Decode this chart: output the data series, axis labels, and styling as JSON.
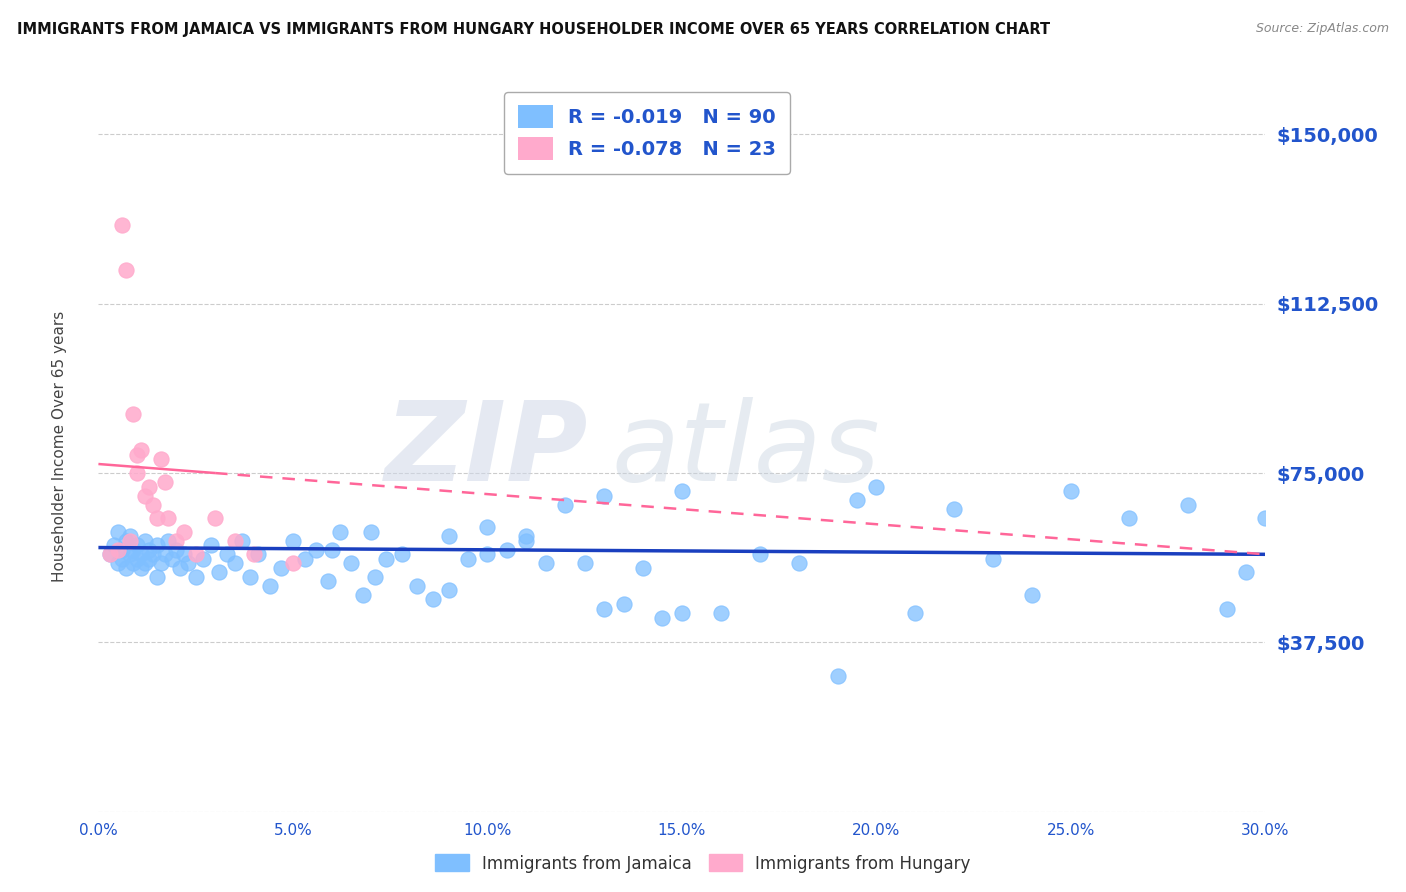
{
  "title": "IMMIGRANTS FROM JAMAICA VS IMMIGRANTS FROM HUNGARY HOUSEHOLDER INCOME OVER 65 YEARS CORRELATION CHART",
  "source": "Source: ZipAtlas.com",
  "ylabel": "Householder Income Over 65 years",
  "xmin": 0.0,
  "xmax": 30.0,
  "ymin": 0,
  "ymax": 160000,
  "yticks": [
    0,
    37500,
    75000,
    112500,
    150000
  ],
  "ytick_labels": [
    "",
    "$37,500",
    "$75,000",
    "$112,500",
    "$150,000"
  ],
  "xticks": [
    0.0,
    5.0,
    10.0,
    15.0,
    20.0,
    25.0,
    30.0
  ],
  "legend_jamaica_r": "R = -0.019",
  "legend_jamaica_n": "N = 90",
  "legend_hungary_r": "R = -0.078",
  "legend_hungary_n": "N = 23",
  "legend_label_jamaica": "Immigrants from Jamaica",
  "legend_label_hungary": "Immigrants from Hungary",
  "color_jamaica": "#7fbfff",
  "color_hungary": "#ffaacc",
  "color_trendline_jamaica": "#1a3fbf",
  "color_trendline_hungary": "#ff6699",
  "color_title": "#111111",
  "color_axis_labels": "#2255cc",
  "color_legend_text": "#2255cc",
  "background_color": "#ffffff",
  "jamaica_x": [
    0.3,
    0.4,
    0.5,
    0.5,
    0.6,
    0.6,
    0.7,
    0.7,
    0.8,
    0.8,
    0.9,
    0.9,
    1.0,
    1.0,
    1.1,
    1.1,
    1.2,
    1.2,
    1.3,
    1.3,
    1.4,
    1.5,
    1.5,
    1.6,
    1.7,
    1.8,
    1.9,
    2.0,
    2.1,
    2.2,
    2.3,
    2.5,
    2.7,
    2.9,
    3.1,
    3.3,
    3.5,
    3.7,
    3.9,
    4.1,
    4.4,
    4.7,
    5.0,
    5.3,
    5.6,
    5.9,
    6.2,
    6.5,
    6.8,
    7.1,
    7.4,
    7.8,
    8.2,
    8.6,
    9.0,
    9.5,
    10.0,
    10.5,
    11.0,
    11.5,
    12.0,
    12.5,
    13.0,
    13.5,
    14.0,
    14.5,
    15.0,
    16.0,
    17.0,
    18.0,
    19.0,
    19.5,
    20.0,
    21.0,
    22.0,
    23.0,
    24.0,
    25.0,
    26.5,
    28.0,
    29.0,
    29.5,
    30.0,
    6.0,
    7.0,
    9.0,
    10.0,
    11.0,
    13.0,
    15.0
  ],
  "jamaica_y": [
    57000,
    59000,
    55000,
    62000,
    58000,
    56000,
    60000,
    54000,
    61000,
    57000,
    55000,
    58000,
    56000,
    59000,
    54000,
    57000,
    60000,
    55000,
    58000,
    56000,
    57000,
    52000,
    59000,
    55000,
    57000,
    60000,
    56000,
    58000,
    54000,
    57000,
    55000,
    52000,
    56000,
    59000,
    53000,
    57000,
    55000,
    60000,
    52000,
    57000,
    50000,
    54000,
    60000,
    56000,
    58000,
    51000,
    62000,
    55000,
    48000,
    52000,
    56000,
    57000,
    50000,
    47000,
    49000,
    56000,
    63000,
    58000,
    61000,
    55000,
    68000,
    55000,
    70000,
    46000,
    54000,
    43000,
    71000,
    44000,
    57000,
    55000,
    30000,
    69000,
    72000,
    44000,
    67000,
    56000,
    48000,
    71000,
    65000,
    68000,
    45000,
    53000,
    65000,
    58000,
    62000,
    61000,
    57000,
    60000,
    45000,
    44000
  ],
  "hungary_x": [
    0.3,
    0.5,
    0.6,
    0.7,
    0.8,
    0.9,
    1.0,
    1.0,
    1.1,
    1.2,
    1.3,
    1.4,
    1.5,
    1.6,
    1.7,
    1.8,
    2.0,
    2.2,
    2.5,
    3.0,
    3.5,
    4.0,
    5.0
  ],
  "hungary_y": [
    57000,
    58000,
    130000,
    120000,
    60000,
    88000,
    75000,
    79000,
    80000,
    70000,
    72000,
    68000,
    65000,
    78000,
    73000,
    65000,
    60000,
    62000,
    57000,
    65000,
    60000,
    57000,
    55000
  ],
  "jamaica_trend_x0": 0.0,
  "jamaica_trend_x1": 30.0,
  "jamaica_trend_y0": 58500,
  "jamaica_trend_y1": 57000,
  "hungary_trend_x0": 0.0,
  "hungary_trend_x1": 30.0,
  "hungary_trend_y0": 77000,
  "hungary_trend_y1": 57000
}
